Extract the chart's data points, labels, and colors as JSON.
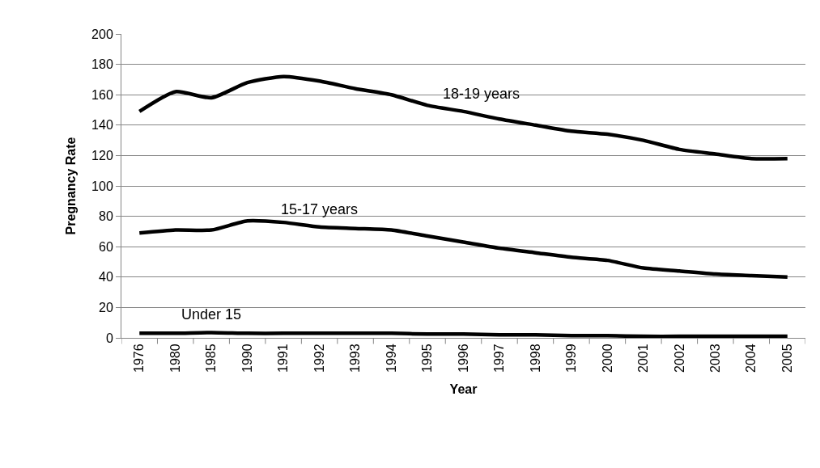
{
  "chart_data": {
    "type": "line",
    "xlabel": "Year",
    "ylabel": "Pregnancy Rate",
    "categories": [
      "1976",
      "1980",
      "1985",
      "1990",
      "1991",
      "1992",
      "1993",
      "1994",
      "1995",
      "1996",
      "1997",
      "1998",
      "1999",
      "2000",
      "2001",
      "2002",
      "2003",
      "2004",
      "2005"
    ],
    "series": [
      {
        "name": "18-19 years",
        "color": "#000000",
        "values": [
          149,
          162,
          158,
          168,
          172,
          169,
          164,
          160,
          153,
          149,
          144,
          140,
          136,
          134,
          130,
          124,
          121,
          118,
          118
        ]
      },
      {
        "name": "15-17 years",
        "color": "#000000",
        "values": [
          69,
          71,
          71,
          77,
          76,
          73,
          72,
          71,
          67,
          63,
          59,
          56,
          53,
          51,
          46,
          44,
          42,
          41,
          40
        ]
      },
      {
        "name": "Under 15",
        "color": "#000000",
        "values": [
          3,
          3,
          3.5,
          3,
          3,
          3,
          3,
          3,
          2.5,
          2.5,
          2,
          2,
          1.5,
          1.5,
          1,
          1,
          1,
          1,
          1
        ]
      }
    ],
    "ylim": [
      0,
      200
    ],
    "yticks": [
      0,
      20,
      40,
      60,
      80,
      100,
      120,
      140,
      160,
      180,
      200
    ],
    "grid": "y",
    "marker": "none",
    "line_style": "solid"
  }
}
